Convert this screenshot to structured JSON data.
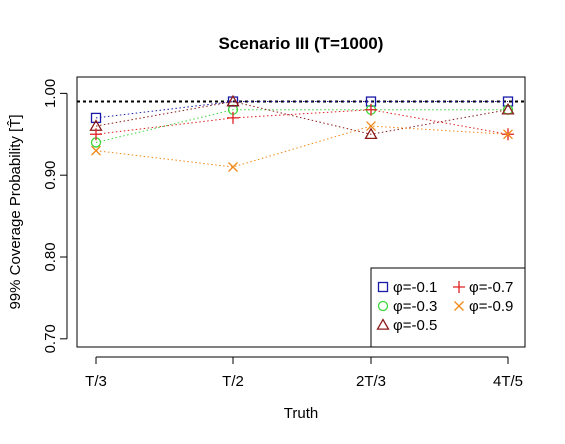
{
  "chart_data": {
    "type": "line",
    "title": "Scenario III (T=1000)",
    "xlabel": "Truth",
    "ylabel": "99% Coverage Probability [T̂]",
    "categories": [
      "T/3",
      "T/2",
      "2T/3",
      "4T/5"
    ],
    "y_ticks": [
      "0.70",
      "0.80",
      "0.90",
      "1.00"
    ],
    "y_tick_values": [
      0.7,
      0.8,
      0.9,
      1.0
    ],
    "ylim": [
      0.69,
      1.02
    ],
    "reference_line": 0.99,
    "grid": false,
    "legend_position": "bottom-right",
    "series": [
      {
        "name": "φ=-0.1",
        "color": "#1a1aa8",
        "marker": "square",
        "values": [
          0.97,
          0.99,
          0.99,
          0.99
        ]
      },
      {
        "name": "φ=-0.3",
        "color": "#3dd63d",
        "marker": "circle",
        "values": [
          0.94,
          0.98,
          0.98,
          0.98
        ]
      },
      {
        "name": "φ=-0.5",
        "color": "#8b1a1a",
        "marker": "triangle",
        "values": [
          0.96,
          0.99,
          0.95,
          0.98
        ]
      },
      {
        "name": "φ=-0.7",
        "color": "#e02020",
        "marker": "plus",
        "values": [
          0.95,
          0.97,
          0.98,
          0.95
        ]
      },
      {
        "name": "φ=-0.9",
        "color": "#f08a1a",
        "marker": "cross",
        "values": [
          0.93,
          0.91,
          0.96,
          0.95
        ]
      }
    ]
  }
}
